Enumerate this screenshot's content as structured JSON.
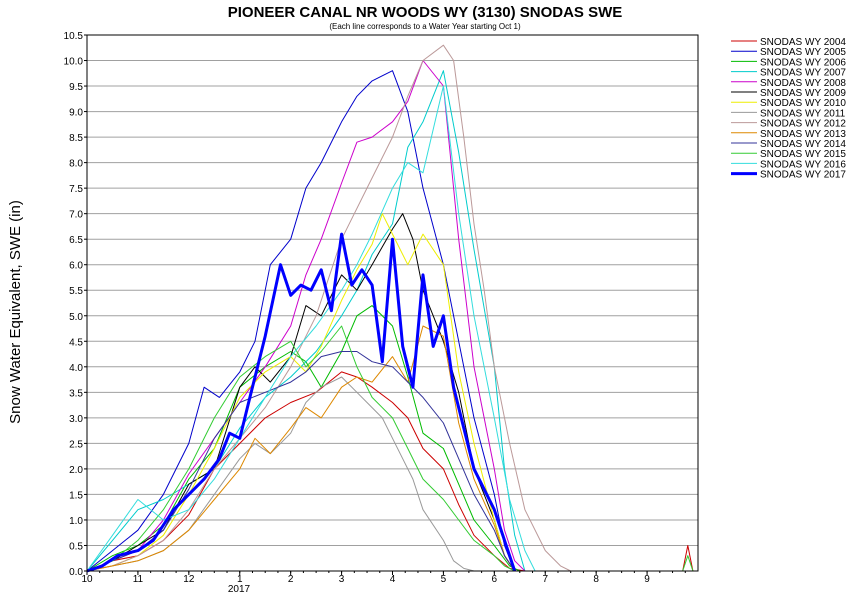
{
  "chart_data": {
    "type": "line",
    "title": "PIONEER CANAL NR WOODS WY (3130) SNODAS SWE",
    "subtitle": "(Each line corresponds to a Water Year starting Oct 1)",
    "xlabel": "",
    "ylabel": "Snow Water Equivalent, SWE (in)",
    "ylim": [
      0,
      10.5
    ],
    "yticks": [
      "0.0",
      "0.5",
      "1.0",
      "1.5",
      "2.0",
      "2.5",
      "3.0",
      "3.5",
      "4.0",
      "4.5",
      "5.0",
      "5.5",
      "6.0",
      "6.5",
      "7.0",
      "7.5",
      "8.0",
      "8.5",
      "9.0",
      "9.5",
      "10.0",
      "10.5"
    ],
    "xlim_months": [
      0,
      12
    ],
    "xticks": [
      {
        "pos": 0,
        "label": "10"
      },
      {
        "pos": 1,
        "label": "11"
      },
      {
        "pos": 2,
        "label": "12"
      },
      {
        "pos": 3,
        "label": "1"
      },
      {
        "pos": 4,
        "label": "2"
      },
      {
        "pos": 5,
        "label": "3"
      },
      {
        "pos": 6,
        "label": "4"
      },
      {
        "pos": 7,
        "label": "5"
      },
      {
        "pos": 8,
        "label": "6"
      },
      {
        "pos": 9,
        "label": "7"
      },
      {
        "pos": 10,
        "label": "8"
      },
      {
        "pos": 11,
        "label": "9"
      }
    ],
    "year_label": {
      "pos": 3,
      "label": "2017"
    },
    "grid": "horizontal",
    "legend": "right",
    "series": [
      {
        "name": "SNODAS WY 2004",
        "color": "#cc0000",
        "width": 1,
        "x": [
          0,
          0.5,
          1,
          1.5,
          2,
          2.5,
          3,
          3.5,
          4,
          4.5,
          5,
          5.3,
          5.6,
          6,
          6.3,
          6.6,
          7,
          7.3,
          7.6,
          8,
          8.3,
          8.6,
          11.7,
          11.8,
          11.9
        ],
        "y": [
          0,
          0.2,
          0.3,
          0.6,
          1.1,
          2.0,
          2.5,
          3.0,
          3.3,
          3.5,
          3.9,
          3.8,
          3.6,
          3.3,
          3.0,
          2.4,
          2.0,
          1.3,
          0.7,
          0.3,
          0.05,
          0,
          0,
          0.5,
          0
        ]
      },
      {
        "name": "SNODAS WY 2005",
        "color": "#0000cc",
        "width": 1,
        "x": [
          0,
          0.5,
          1,
          1.5,
          2,
          2.3,
          2.6,
          3,
          3.3,
          3.6,
          4,
          4.3,
          4.6,
          5,
          5.3,
          5.6,
          6,
          6.3,
          6.6,
          7,
          7.3,
          7.6,
          8,
          8.2,
          8.4
        ],
        "y": [
          0,
          0.4,
          0.8,
          1.5,
          2.5,
          3.6,
          3.4,
          3.9,
          4.5,
          6.0,
          6.5,
          7.5,
          8.0,
          8.8,
          9.3,
          9.6,
          9.8,
          9.0,
          7.5,
          6.0,
          4.5,
          3.0,
          1.5,
          0.5,
          0
        ]
      },
      {
        "name": "SNODAS WY 2006",
        "color": "#00bb00",
        "width": 1,
        "x": [
          0,
          0.5,
          1,
          1.5,
          2,
          2.5,
          3,
          3.5,
          4,
          4.3,
          4.6,
          5,
          5.3,
          5.6,
          6,
          6.3,
          6.6,
          7,
          7.3,
          7.6,
          8,
          8.3,
          8.5
        ],
        "y": [
          0,
          0.3,
          0.5,
          0.9,
          1.8,
          2.4,
          3.6,
          4.0,
          4.3,
          4.1,
          3.6,
          4.3,
          5.0,
          5.2,
          4.8,
          3.8,
          2.7,
          2.4,
          1.7,
          1.0,
          0.5,
          0.1,
          0
        ]
      },
      {
        "name": "SNODAS WY 2007",
        "color": "#00cccc",
        "width": 1,
        "x": [
          0,
          0.5,
          1,
          1.5,
          2,
          2.5,
          3,
          3.5,
          4,
          4.5,
          5,
          5.3,
          5.6,
          6,
          6.3,
          6.6,
          7,
          7.3,
          7.6,
          8,
          8.2,
          8.4,
          8.6
        ],
        "y": [
          0,
          0.6,
          1.2,
          1.4,
          1.7,
          2.0,
          2.8,
          3.4,
          3.8,
          4.3,
          5.0,
          5.5,
          6.2,
          6.8,
          8.3,
          8.8,
          9.8,
          8.2,
          6.3,
          4.0,
          2.0,
          0.7,
          0
        ]
      },
      {
        "name": "SNODAS WY 2008",
        "color": "#cc00cc",
        "width": 1,
        "x": [
          0,
          0.5,
          1,
          1.5,
          2,
          2.5,
          3,
          3.5,
          4,
          4.3,
          4.6,
          5,
          5.3,
          5.6,
          6,
          6.3,
          6.6,
          7,
          7.3,
          7.6,
          8,
          8.2,
          8.4,
          8.6
        ],
        "y": [
          0,
          0.2,
          0.4,
          1.0,
          1.9,
          2.6,
          3.3,
          4.0,
          4.8,
          5.8,
          6.5,
          7.6,
          8.4,
          8.5,
          8.8,
          9.2,
          10.0,
          9.5,
          6.5,
          4.0,
          2.0,
          0.8,
          0.2,
          0
        ]
      },
      {
        "name": "SNODAS WY 2009",
        "color": "#000000",
        "width": 1,
        "x": [
          0,
          0.5,
          1,
          1.5,
          2,
          2.5,
          3,
          3.3,
          3.6,
          4,
          4.3,
          4.6,
          5,
          5.3,
          5.6,
          6,
          6.2,
          6.4,
          6.6,
          7,
          7.3,
          7.6,
          8,
          8.2,
          8.4
        ],
        "y": [
          0,
          0.2,
          0.5,
          0.8,
          1.7,
          2.0,
          3.6,
          4.0,
          3.7,
          4.2,
          5.2,
          5.0,
          5.8,
          5.5,
          6.0,
          6.7,
          7.0,
          6.5,
          5.5,
          4.5,
          3.5,
          2.0,
          1.0,
          0.3,
          0
        ]
      },
      {
        "name": "SNODAS WY 2010",
        "color": "#eeee00",
        "width": 1,
        "x": [
          0,
          0.5,
          1,
          1.5,
          2,
          2.5,
          3,
          3.5,
          4,
          4.3,
          4.6,
          5,
          5.3,
          5.6,
          5.8,
          6,
          6.3,
          6.6,
          7,
          7.3,
          7.6,
          8,
          8.2,
          8.4
        ],
        "y": [
          0,
          0.1,
          0.3,
          0.7,
          1.5,
          2.4,
          3.4,
          3.9,
          4.2,
          3.9,
          4.4,
          5.3,
          5.9,
          6.4,
          7.0,
          6.6,
          6.0,
          6.6,
          6.0,
          3.9,
          2.5,
          1.0,
          0.3,
          0
        ]
      },
      {
        "name": "SNODAS WY 2011",
        "color": "#999999",
        "width": 1,
        "x": [
          0,
          0.5,
          1,
          1.5,
          2,
          2.5,
          3,
          3.3,
          3.6,
          4,
          4.3,
          4.6,
          5,
          5.3,
          5.6,
          5.8,
          6,
          6.2,
          6.4,
          6.6,
          7,
          7.2,
          7.4,
          7.6
        ],
        "y": [
          0,
          0.1,
          0.2,
          0.4,
          0.8,
          1.5,
          2.2,
          2.5,
          2.3,
          2.7,
          3.3,
          3.6,
          3.8,
          3.5,
          3.2,
          3.0,
          2.6,
          2.2,
          1.8,
          1.2,
          0.6,
          0.2,
          0.05,
          0
        ]
      },
      {
        "name": "SNODAS WY 2012",
        "color": "#bb9999",
        "width": 1,
        "x": [
          0,
          0.5,
          1,
          1.5,
          2,
          2.5,
          3,
          3.5,
          4,
          4.5,
          5,
          5.5,
          6,
          6.3,
          6.6,
          7,
          7.2,
          7.4,
          7.6,
          7.8,
          8,
          8.3,
          8.6,
          9,
          9.3,
          9.5
        ],
        "y": [
          0,
          0.1,
          0.3,
          0.6,
          1.2,
          2.0,
          2.6,
          3.2,
          4.0,
          5.0,
          6.5,
          7.5,
          8.5,
          9.3,
          10.0,
          10.3,
          10.0,
          8.5,
          6.8,
          5.5,
          4.0,
          2.5,
          1.2,
          0.4,
          0.1,
          0
        ]
      },
      {
        "name": "SNODAS WY 2013",
        "color": "#dd8800",
        "width": 1,
        "x": [
          0,
          0.5,
          1,
          1.5,
          2,
          2.5,
          3,
          3.3,
          3.6,
          4,
          4.3,
          4.6,
          5,
          5.3,
          5.6,
          6,
          6.3,
          6.6,
          7,
          7.3,
          7.6,
          8,
          8.2,
          8.4
        ],
        "y": [
          0,
          0.1,
          0.2,
          0.4,
          0.8,
          1.4,
          2.0,
          2.6,
          2.3,
          2.8,
          3.2,
          3.0,
          3.6,
          3.8,
          3.7,
          4.2,
          3.7,
          4.8,
          4.6,
          2.9,
          1.8,
          0.9,
          0.3,
          0
        ]
      },
      {
        "name": "SNODAS WY 2014",
        "color": "#333399",
        "width": 1,
        "x": [
          0,
          0.5,
          1,
          1.5,
          2,
          2.5,
          3,
          3.5,
          4,
          4.3,
          4.6,
          5,
          5.3,
          5.6,
          6,
          6.3,
          6.6,
          7,
          7.3,
          7.6,
          8,
          8.2,
          8.4
        ],
        "y": [
          0,
          0.2,
          0.4,
          0.8,
          1.6,
          2.6,
          3.3,
          3.5,
          3.7,
          3.9,
          4.2,
          4.3,
          4.3,
          4.1,
          4.0,
          3.7,
          3.4,
          2.9,
          2.2,
          1.5,
          0.8,
          0.3,
          0
        ]
      },
      {
        "name": "SNODAS WY 2015",
        "color": "#33cc33",
        "width": 1,
        "x": [
          0,
          0.5,
          1,
          1.5,
          2,
          2.5,
          3,
          3.5,
          4,
          4.3,
          4.6,
          5,
          5.3,
          5.6,
          6,
          6.3,
          6.6,
          7,
          7.3,
          7.6,
          8,
          8.2,
          8.4,
          11.7,
          11.8,
          11.9
        ],
        "y": [
          0,
          0.2,
          0.6,
          1.2,
          2.0,
          3.0,
          3.8,
          4.2,
          4.5,
          4.0,
          4.3,
          4.8,
          4.0,
          3.4,
          3.0,
          2.4,
          1.8,
          1.4,
          1.0,
          0.6,
          0.3,
          0.1,
          0,
          0,
          0.3,
          0
        ]
      },
      {
        "name": "SNODAS WY 2016",
        "color": "#33dddd",
        "width": 1,
        "x": [
          0,
          0.5,
          1,
          1.5,
          2,
          2.5,
          3,
          3.5,
          4,
          4.5,
          5,
          5.3,
          5.6,
          6,
          6.3,
          6.6,
          7,
          7.3,
          7.6,
          8,
          8.3,
          8.6,
          8.8
        ],
        "y": [
          0,
          0.7,
          1.4,
          1.0,
          1.2,
          1.8,
          2.6,
          3.4,
          4.2,
          4.8,
          5.5,
          6.0,
          6.6,
          7.5,
          8.0,
          7.8,
          9.5,
          7.0,
          5.0,
          3.0,
          1.4,
          0.4,
          0
        ]
      },
      {
        "name": "SNODAS WY 2017",
        "color": "#0000ff",
        "width": 3,
        "x": [
          0,
          0.3,
          0.6,
          1,
          1.3,
          1.5,
          1.7,
          2,
          2.3,
          2.6,
          2.8,
          3,
          3.2,
          3.5,
          3.8,
          4,
          4.2,
          4.4,
          4.6,
          4.8,
          5,
          5.2,
          5.4,
          5.6,
          5.8,
          6,
          6.2,
          6.4,
          6.6,
          6.8,
          7,
          7.2,
          7.4,
          7.6,
          7.8,
          8,
          8.2,
          8.4
        ],
        "y": [
          0,
          0.1,
          0.3,
          0.4,
          0.6,
          0.9,
          1.2,
          1.5,
          1.8,
          2.2,
          2.7,
          2.6,
          3.4,
          4.6,
          6.0,
          5.4,
          5.6,
          5.5,
          5.9,
          5.1,
          6.6,
          5.6,
          5.9,
          5.6,
          4.1,
          6.5,
          4.4,
          3.6,
          5.8,
          4.4,
          5.0,
          3.6,
          2.8,
          2.0,
          1.6,
          1.2,
          0.6,
          0
        ]
      }
    ]
  }
}
